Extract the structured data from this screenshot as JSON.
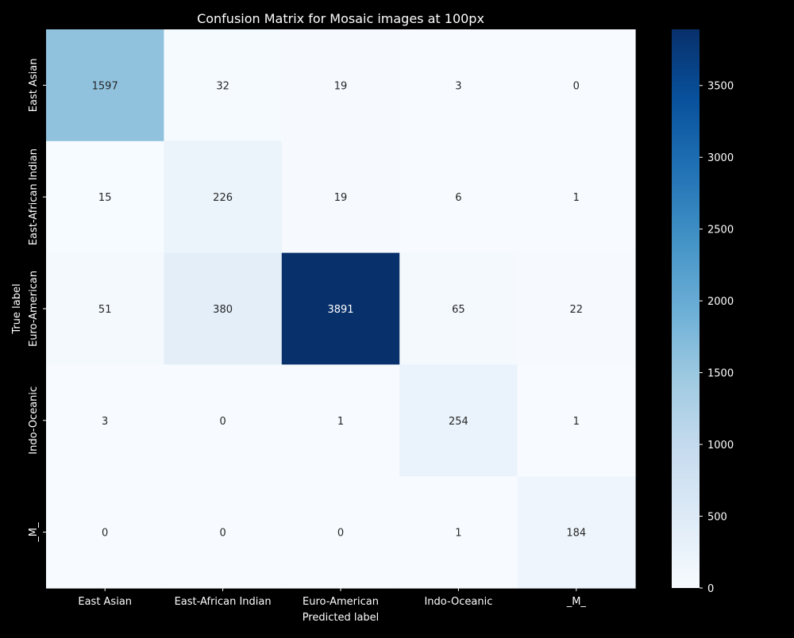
{
  "chart_data": {
    "type": "heatmap",
    "title": "Confusion Matrix for Mosaic images at 100px",
    "xlabel": "Predicted label",
    "ylabel": "True label",
    "x_categories": [
      "East Asian",
      "East-African Indian",
      "Euro-American",
      "Indo-Oceanic",
      "_M_"
    ],
    "y_categories": [
      "East Asian",
      "East-African Indian",
      "Euro-American",
      "Indo-Oceanic",
      "_M_"
    ],
    "values": [
      [
        1597,
        32,
        19,
        3,
        0
      ],
      [
        15,
        226,
        19,
        6,
        1
      ],
      [
        51,
        380,
        3891,
        65,
        22
      ],
      [
        3,
        0,
        1,
        254,
        1
      ],
      [
        0,
        0,
        0,
        1,
        184
      ]
    ],
    "colorbar": {
      "colormap": "Blues",
      "range": [
        0,
        3891
      ],
      "ticks": [
        0,
        500,
        1000,
        1500,
        2000,
        2500,
        3000,
        3500
      ]
    },
    "colors": {
      "background": "#000000",
      "foreground": "#ffffff"
    }
  }
}
